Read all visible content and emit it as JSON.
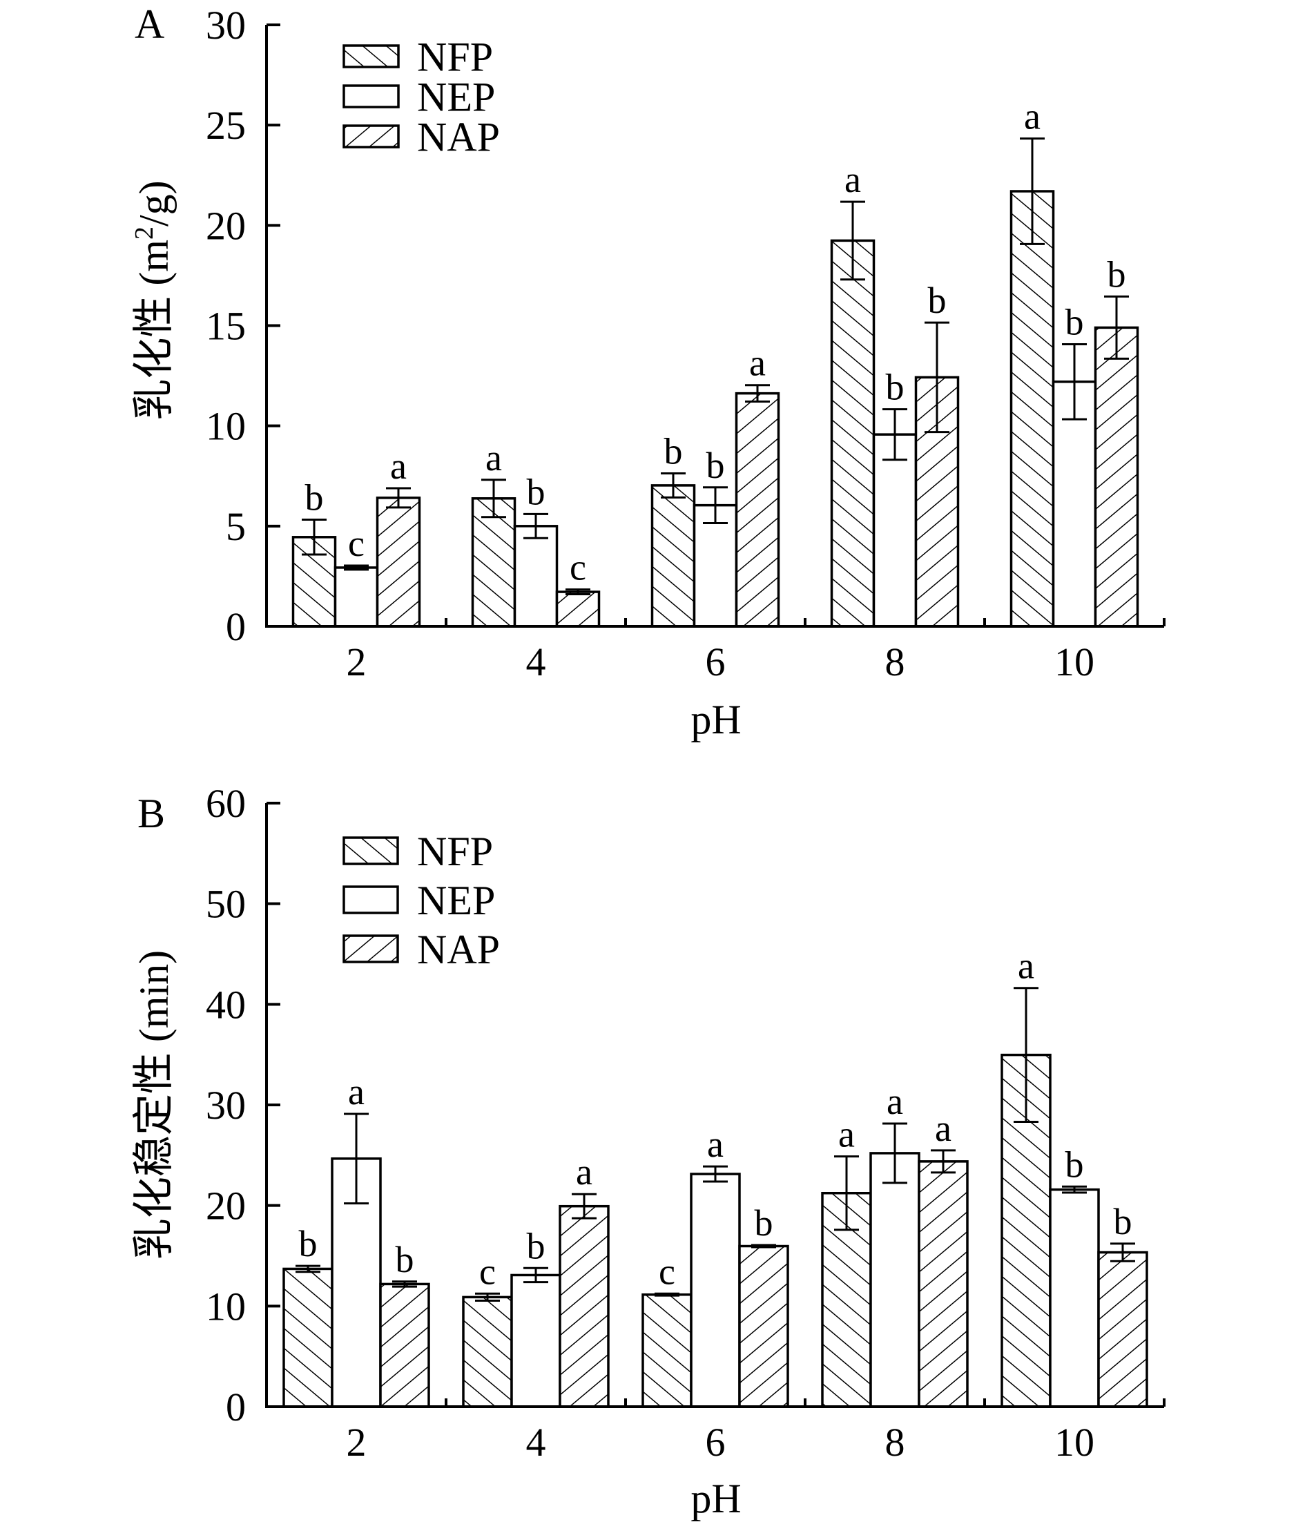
{
  "chart_data": [
    {
      "type": "bar",
      "panel_label": "A",
      "xlabel": "pH",
      "ylabel": "乳化性 (m",
      "ylabel_sup": "2",
      "ylabel_tail": "/g)",
      "ylim": [
        0,
        30
      ],
      "yticks": [
        0,
        5,
        10,
        15,
        20,
        25,
        30
      ],
      "ytick_labels": [
        "0",
        "5",
        "10",
        "15",
        "20",
        "25",
        "30"
      ],
      "categories": [
        "2",
        "4",
        "6",
        "8",
        "10"
      ],
      "legend": [
        "NFP",
        "NEP",
        "NAP"
      ],
      "legend_position": "top-left",
      "grid": false,
      "series": [
        {
          "name": "NFP",
          "pattern": "hatch-forward",
          "values": [
            4.45,
            6.38,
            7.03,
            19.24,
            21.7
          ],
          "errors": [
            0.87,
            0.93,
            0.6,
            1.94,
            2.63
          ],
          "letters": [
            "b",
            "a",
            "b",
            "a",
            "a"
          ]
        },
        {
          "name": "NEP",
          "pattern": "none",
          "values": [
            2.93,
            5.0,
            6.04,
            9.57,
            12.2
          ],
          "errors": [
            0.1,
            0.6,
            0.89,
            1.26,
            1.87
          ],
          "letters": [
            "c",
            "b",
            "b",
            "b",
            "b"
          ]
        },
        {
          "name": "NAP",
          "pattern": "hatch-back",
          "values": [
            6.41,
            1.72,
            11.62,
            12.42,
            14.9
          ],
          "errors": [
            0.48,
            0.12,
            0.41,
            2.73,
            1.55
          ],
          "letters": [
            "a",
            "c",
            "a",
            "b",
            "b"
          ]
        }
      ]
    },
    {
      "type": "bar",
      "panel_label": "B",
      "xlabel": "pH",
      "ylabel": "乳化稳定性 (min)",
      "ylim": [
        0,
        60
      ],
      "yticks": [
        0,
        10,
        20,
        30,
        40,
        50,
        60
      ],
      "ytick_labels": [
        "0",
        "10",
        "20",
        "30",
        "40",
        "50",
        "60"
      ],
      "categories": [
        "2",
        "4",
        "6",
        "8",
        "10"
      ],
      "legend": [
        "NFP",
        "NEP",
        "NAP"
      ],
      "legend_position": "top-left",
      "grid": false,
      "series": [
        {
          "name": "NFP",
          "pattern": "hatch-forward",
          "values": [
            13.7,
            10.89,
            11.14,
            21.23,
            34.97
          ],
          "errors": [
            0.3,
            0.35,
            0.1,
            3.65,
            6.65
          ],
          "letters": [
            "b",
            "c",
            "c",
            "a",
            "a"
          ]
        },
        {
          "name": "NEP",
          "pattern": "none",
          "values": [
            24.66,
            13.08,
            23.13,
            25.2,
            21.58
          ],
          "errors": [
            4.45,
            0.7,
            0.75,
            2.95,
            0.3
          ],
          "letters": [
            "a",
            "b",
            "a",
            "a",
            "b"
          ]
        },
        {
          "name": "NAP",
          "pattern": "hatch-back",
          "values": [
            12.19,
            19.93,
            15.96,
            24.38,
            15.34
          ],
          "errors": [
            0.25,
            1.2,
            0.1,
            1.1,
            0.87
          ],
          "letters": [
            "b",
            "a",
            "b",
            "a",
            "b"
          ]
        }
      ]
    }
  ]
}
